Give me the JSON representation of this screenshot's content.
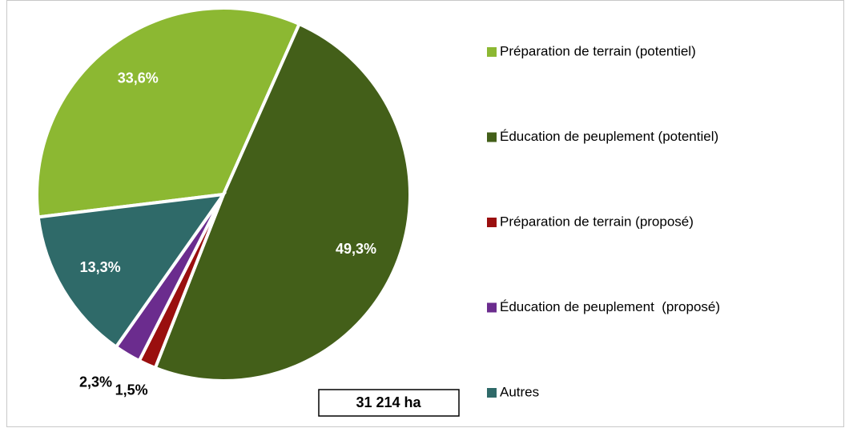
{
  "chart_data": {
    "type": "pie",
    "categories": [
      "Préparation de terrain (potentiel)",
      "Éducation de peuplement (potentiel)",
      "Préparation de terrain (proposé)",
      "Éducation de peuplement  (proposé)",
      "Autres"
    ],
    "values": [
      33.6,
      49.3,
      1.5,
      2.3,
      13.3
    ],
    "value_labels": [
      "33,6%",
      "49,3%",
      "1,5%",
      "2,3%",
      "13,3%"
    ],
    "colors": [
      "#8cb832",
      "#435f19",
      "#9a0f0f",
      "#6b2c8e",
      "#2f6a69"
    ],
    "annotation": "31 214 ha",
    "legend": "right"
  }
}
